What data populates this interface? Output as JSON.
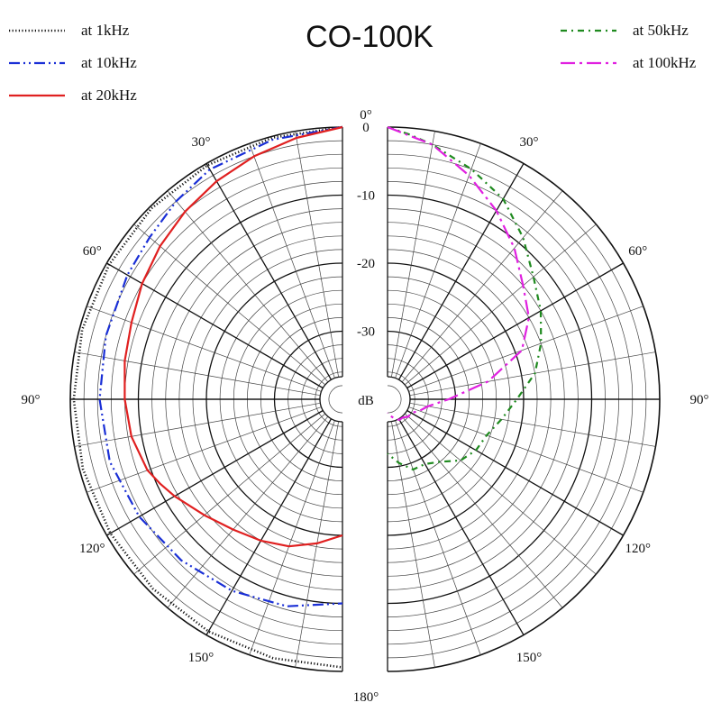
{
  "chart_data": {
    "type": "polar",
    "title": "CO-100K",
    "radial_unit": "dB",
    "radial_ticks": [
      "0",
      "-10",
      "-20",
      "-30"
    ],
    "angle_ticks": {
      "left": [
        "30°",
        "60°",
        "90°",
        "120°",
        "150°"
      ],
      "right": [
        "30°",
        "60°",
        "90°",
        "120°",
        "150°"
      ],
      "top": "0°",
      "bottom": "180°"
    },
    "legend_left": [
      {
        "series": 0,
        "label": "at 1kHz"
      },
      {
        "series": 1,
        "label": "at 10kHz"
      },
      {
        "series": 2,
        "label": "at 20kHz"
      }
    ],
    "legend_right": [
      {
        "series": 3,
        "label": "at 50kHz"
      },
      {
        "series": 4,
        "label": "at 100kHz"
      }
    ],
    "series": [
      {
        "name": "at 1kHz",
        "side": "left",
        "color": "#111111",
        "dash": "dotted",
        "angles": [
          0,
          15,
          30,
          45,
          60,
          75,
          90,
          105,
          120,
          135,
          150,
          165,
          180
        ],
        "values": [
          0,
          -0.2,
          -0.3,
          -0.3,
          -0.4,
          -0.4,
          -0.5,
          -0.5,
          -0.6,
          -0.6,
          -0.6,
          -0.6,
          -0.6
        ]
      },
      {
        "name": "at 10kHz",
        "side": "left",
        "color": "#1a2fd6",
        "dash": "dashdotdot",
        "angles": [
          0,
          15,
          30,
          40,
          50,
          60,
          75,
          90,
          105,
          120,
          135,
          150,
          165,
          180
        ],
        "values": [
          0,
          -0.5,
          -1.0,
          -2.0,
          -3.0,
          -3.5,
          -4.0,
          -4.3,
          -4.6,
          -5.5,
          -6.5,
          -7.5,
          -8.5,
          -10.0
        ]
      },
      {
        "name": "at 20kHz",
        "side": "left",
        "color": "#e02020",
        "dash": "solid",
        "angles": [
          0,
          10,
          20,
          30,
          40,
          50,
          60,
          70,
          80,
          90,
          100,
          110,
          115,
          120,
          130,
          140,
          150,
          160,
          170,
          180
        ],
        "values": [
          0,
          -1.0,
          -2.0,
          -3.0,
          -4.0,
          -5.0,
          -6.0,
          -7.0,
          -7.5,
          -8.0,
          -8.5,
          -9.5,
          -10.5,
          -11.5,
          -13.5,
          -15.0,
          -16.0,
          -17.0,
          -18.5,
          -20.0
        ]
      },
      {
        "name": "at 50kHz",
        "side": "right",
        "color": "#1f8a1f",
        "dash": "dashdot",
        "angles": [
          0,
          5,
          10,
          20,
          30,
          40,
          50,
          60,
          70,
          80,
          90,
          100,
          110,
          120,
          130,
          140,
          150,
          160,
          170,
          180
        ],
        "values": [
          0,
          -1.0,
          -2.0,
          -4.0,
          -6.0,
          -9.0,
          -12.0,
          -14.0,
          -16.0,
          -18.0,
          -21.0,
          -23.0,
          -24.5,
          -25.0,
          -26.0,
          -28.0,
          -29.0,
          -29.0,
          -30.5,
          -32.0
        ]
      },
      {
        "name": "at 100kHz",
        "side": "right",
        "color": "#e020e0",
        "dash": "longdashdot",
        "angles": [
          0,
          10,
          20,
          30,
          40,
          50,
          60,
          70,
          80,
          90,
          100,
          110,
          120,
          130,
          140,
          150,
          160,
          170,
          180
        ],
        "values": [
          0,
          -2.0,
          -5.0,
          -8.0,
          -11.0,
          -14.0,
          -16.0,
          -19.0,
          -25.0,
          -31.0,
          -34.0,
          -35.0,
          -36.0,
          -36.0,
          -36.5,
          -36.5,
          -37.0,
          -37.5,
          -38.0
        ]
      }
    ]
  }
}
